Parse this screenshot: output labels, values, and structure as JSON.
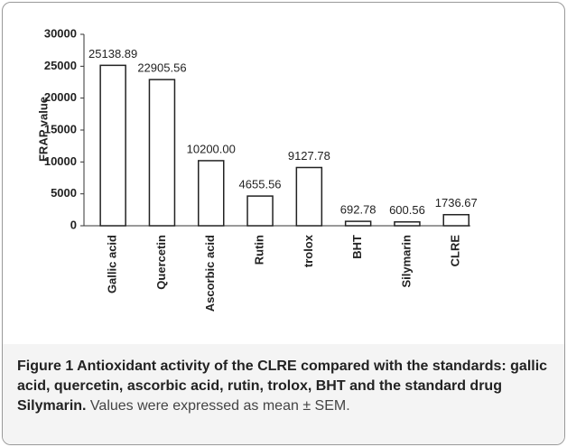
{
  "chart_data": {
    "type": "bar",
    "y_label": "FRAP value",
    "categories": [
      "Gallic acid",
      "Quercetin",
      "Ascorbic acid",
      "Rutin",
      "trolox",
      "BHT",
      "Silymarin",
      "CLRE"
    ],
    "values": [
      25138.89,
      22905.56,
      10200.0,
      4655.56,
      9127.78,
      692.78,
      600.56,
      1736.67
    ],
    "value_labels": [
      "25138.89",
      "22905.56",
      "10200.00",
      "4655.56",
      "9127.78",
      "692.78",
      "600.56",
      "1736.67"
    ],
    "color": "#ffffff",
    "ylim": [
      0,
      30000
    ],
    "yticks": [
      0,
      5000,
      10000,
      15000,
      20000,
      25000,
      30000
    ]
  },
  "caption": {
    "title": "Figure 1 Antioxidant activity of the CLRE compared with the standards: gallic acid, quercetin, ascorbic acid, rutin, trolox, BHT and the standard drug Silymarin.",
    "text": " Values were expressed as mean ± SEM."
  }
}
